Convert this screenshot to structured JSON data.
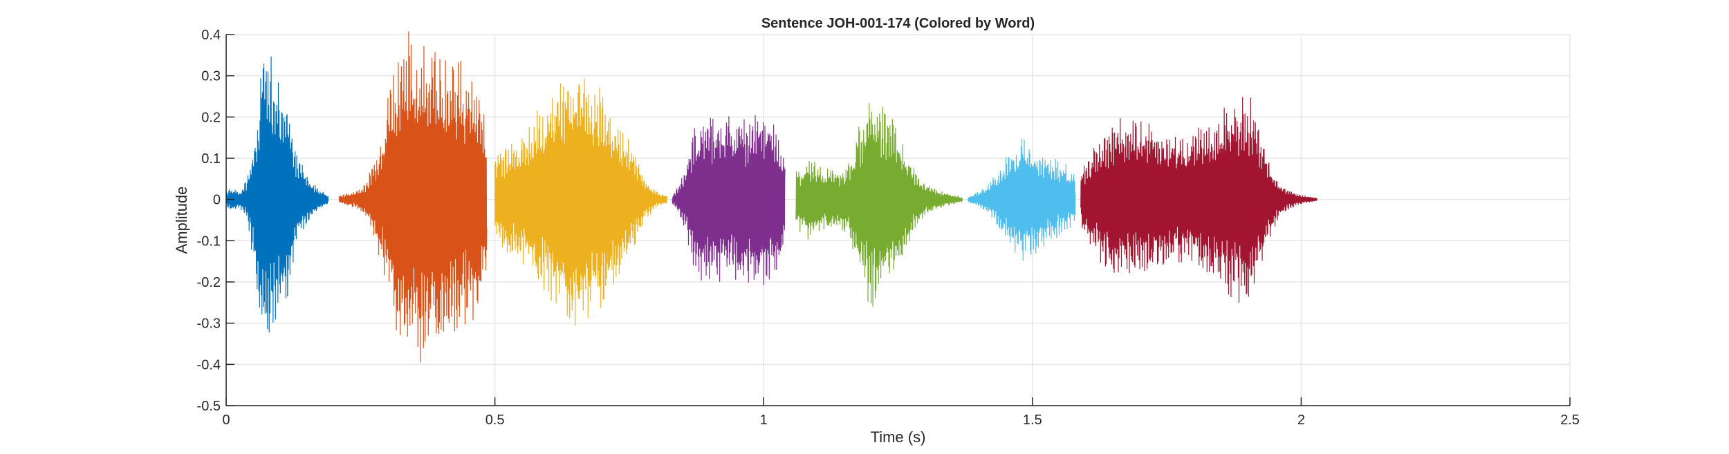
{
  "chart_data": {
    "type": "line",
    "title": "Sentence JOH-001-174 (Colored by Word)",
    "xlabel": "Time (s)",
    "ylabel": "Amplitude",
    "xlim": [
      0,
      2.5
    ],
    "ylim": [
      -0.5,
      0.4
    ],
    "xticks": [
      0,
      0.5,
      1,
      1.5,
      2,
      2.5
    ],
    "xtick_labels": [
      "0",
      "0.5",
      "1",
      "1.5",
      "2",
      "2.5"
    ],
    "yticks": [
      -0.5,
      -0.4,
      -0.3,
      -0.2,
      -0.1,
      0,
      0.1,
      0.2,
      0.3,
      0.4
    ],
    "ytick_labels": [
      "-0.5",
      "-0.4",
      "-0.3",
      "-0.2",
      "-0.1",
      "0",
      "0.1",
      "0.2",
      "0.3",
      "0.4"
    ],
    "grid": true,
    "segments": [
      {
        "color": "#0072BD",
        "start": 0.0,
        "end": 0.19,
        "envelope": [
          [
            0.0,
            0.02
          ],
          [
            0.01,
            0.03
          ],
          [
            0.025,
            0.02
          ],
          [
            0.04,
            0.06
          ],
          [
            0.055,
            0.2
          ],
          [
            0.07,
            0.38
          ],
          [
            0.085,
            0.36
          ],
          [
            0.1,
            0.3
          ],
          [
            0.115,
            0.25
          ],
          [
            0.13,
            0.12
          ],
          [
            0.15,
            0.06
          ],
          [
            0.17,
            0.03
          ],
          [
            0.19,
            0.01
          ]
        ]
      },
      {
        "color": "#D95319",
        "start": 0.21,
        "end": 0.485,
        "envelope": [
          [
            0.21,
            0.01
          ],
          [
            0.24,
            0.02
          ],
          [
            0.26,
            0.04
          ],
          [
            0.275,
            0.1
          ],
          [
            0.29,
            0.16
          ],
          [
            0.305,
            0.28
          ],
          [
            0.32,
            0.38
          ],
          [
            0.34,
            0.42
          ],
          [
            0.36,
            0.4
          ],
          [
            0.38,
            0.38
          ],
          [
            0.4,
            0.36
          ],
          [
            0.42,
            0.34
          ],
          [
            0.44,
            0.34
          ],
          [
            0.46,
            0.32
          ],
          [
            0.475,
            0.25
          ],
          [
            0.485,
            0.18
          ]
        ]
      },
      {
        "color": "#EDB120",
        "start": 0.5,
        "end": 0.82,
        "envelope": [
          [
            0.5,
            0.1
          ],
          [
            0.52,
            0.14
          ],
          [
            0.54,
            0.16
          ],
          [
            0.56,
            0.17
          ],
          [
            0.58,
            0.22
          ],
          [
            0.6,
            0.24
          ],
          [
            0.62,
            0.3
          ],
          [
            0.64,
            0.35
          ],
          [
            0.66,
            0.34
          ],
          [
            0.68,
            0.3
          ],
          [
            0.7,
            0.27
          ],
          [
            0.72,
            0.22
          ],
          [
            0.74,
            0.18
          ],
          [
            0.76,
            0.12
          ],
          [
            0.78,
            0.05
          ],
          [
            0.8,
            0.02
          ],
          [
            0.82,
            0.01
          ]
        ]
      },
      {
        "color": "#7E2F8E",
        "start": 0.83,
        "end": 1.04,
        "envelope": [
          [
            0.83,
            0.01
          ],
          [
            0.84,
            0.03
          ],
          [
            0.855,
            0.08
          ],
          [
            0.87,
            0.18
          ],
          [
            0.89,
            0.22
          ],
          [
            0.92,
            0.2
          ],
          [
            0.95,
            0.21
          ],
          [
            0.98,
            0.22
          ],
          [
            1.0,
            0.24
          ],
          [
            1.02,
            0.2
          ],
          [
            1.04,
            0.12
          ]
        ]
      },
      {
        "color": "#77AC30",
        "start": 1.06,
        "end": 1.37,
        "envelope": [
          [
            1.06,
            0.07
          ],
          [
            1.08,
            0.1
          ],
          [
            1.1,
            0.09
          ],
          [
            1.12,
            0.08
          ],
          [
            1.14,
            0.07
          ],
          [
            1.16,
            0.1
          ],
          [
            1.18,
            0.2
          ],
          [
            1.2,
            0.28
          ],
          [
            1.22,
            0.25
          ],
          [
            1.24,
            0.2
          ],
          [
            1.26,
            0.15
          ],
          [
            1.28,
            0.08
          ],
          [
            1.3,
            0.04
          ],
          [
            1.33,
            0.02
          ],
          [
            1.37,
            0.005
          ]
        ]
      },
      {
        "color": "#4DBEEE",
        "start": 1.38,
        "end": 1.58,
        "envelope": [
          [
            1.38,
            0.005
          ],
          [
            1.4,
            0.02
          ],
          [
            1.42,
            0.04
          ],
          [
            1.44,
            0.08
          ],
          [
            1.46,
            0.13
          ],
          [
            1.48,
            0.15
          ],
          [
            1.5,
            0.14
          ],
          [
            1.52,
            0.12
          ],
          [
            1.54,
            0.1
          ],
          [
            1.56,
            0.09
          ],
          [
            1.58,
            0.06
          ]
        ]
      },
      {
        "color": "#A2142F",
        "start": 1.59,
        "end": 2.03,
        "envelope": [
          [
            1.59,
            0.08
          ],
          [
            1.61,
            0.12
          ],
          [
            1.63,
            0.16
          ],
          [
            1.65,
            0.2
          ],
          [
            1.67,
            0.2
          ],
          [
            1.7,
            0.2
          ],
          [
            1.73,
            0.18
          ],
          [
            1.76,
            0.17
          ],
          [
            1.79,
            0.15
          ],
          [
            1.82,
            0.2
          ],
          [
            1.85,
            0.22
          ],
          [
            1.88,
            0.25
          ],
          [
            1.9,
            0.27
          ],
          [
            1.92,
            0.2
          ],
          [
            1.94,
            0.1
          ],
          [
            1.96,
            0.04
          ],
          [
            1.99,
            0.015
          ],
          [
            2.03,
            0.003
          ]
        ]
      }
    ]
  }
}
